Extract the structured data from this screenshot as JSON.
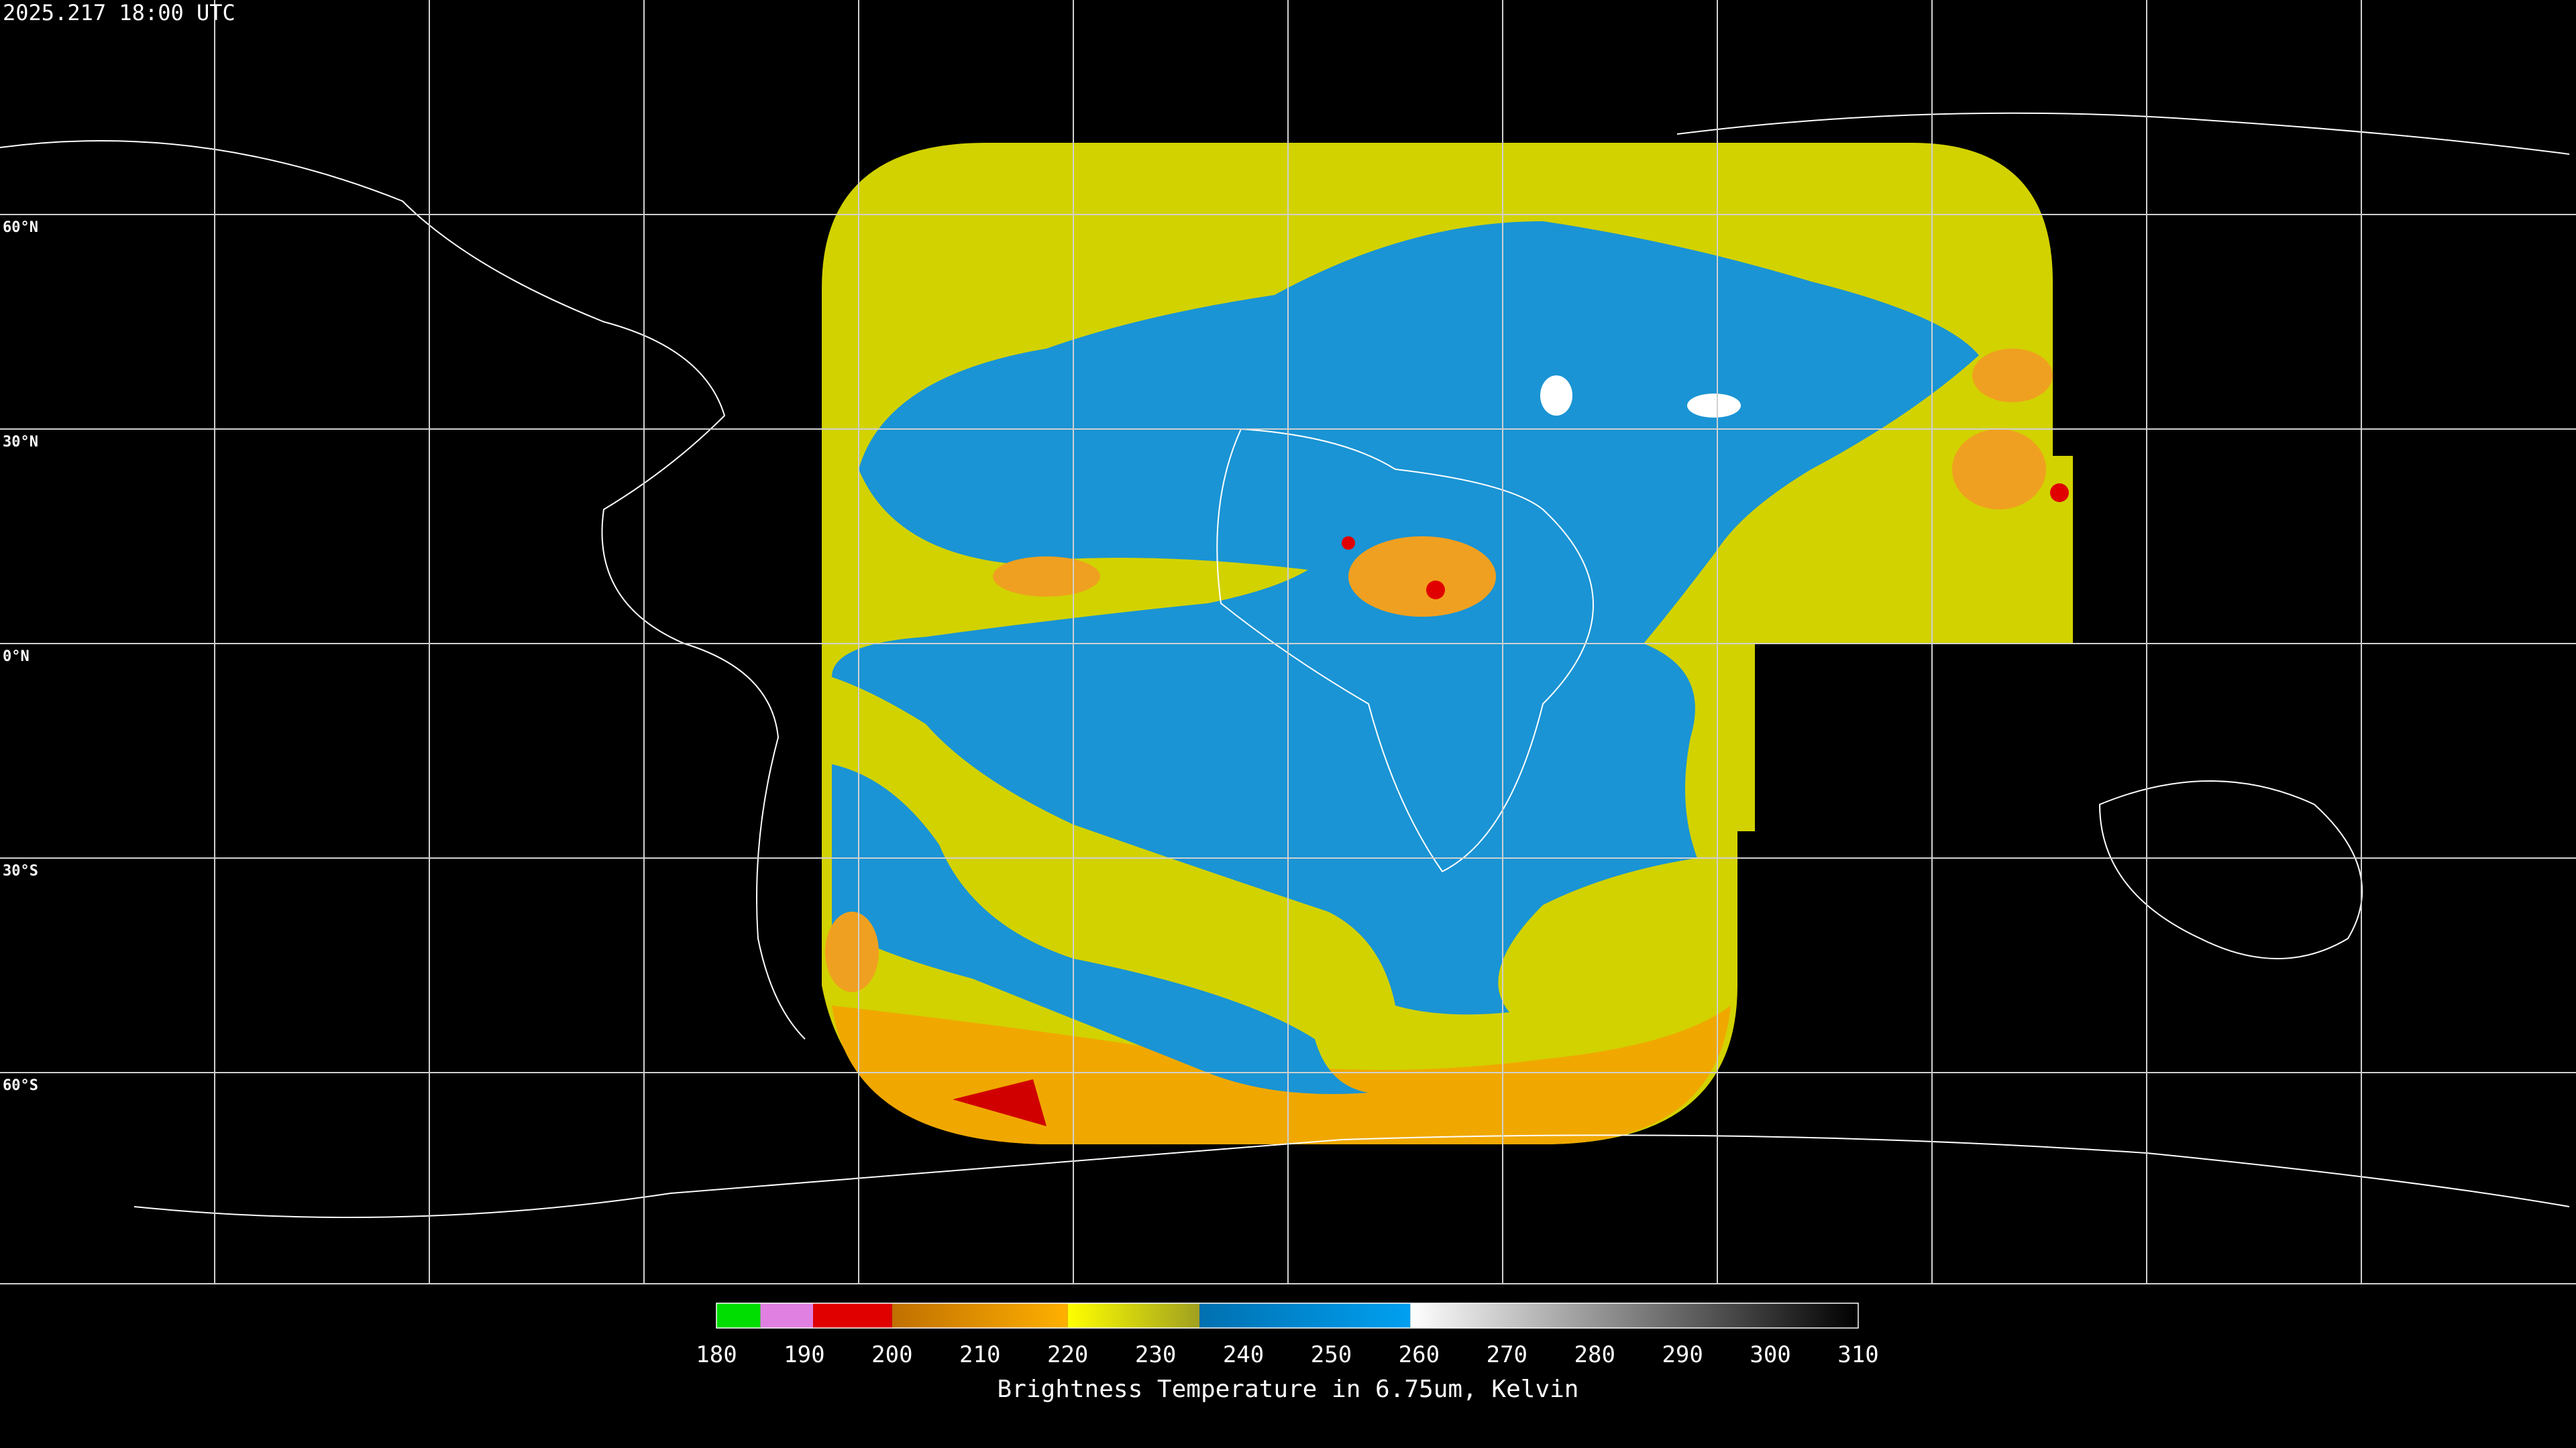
{
  "header": {
    "timestamp": "2025.217 18:00 UTC"
  },
  "latitude_labels": [
    "60°N",
    "30°N",
    "0°N",
    "30°S",
    "60°S"
  ],
  "colorbar": {
    "range": [
      180,
      310
    ],
    "ticks": [
      180,
      190,
      200,
      210,
      220,
      230,
      240,
      250,
      260,
      270,
      280,
      290,
      300,
      310
    ],
    "label": "Brightness Temperature in 6.75um, Kelvin",
    "segments": [
      {
        "from": 180,
        "to": 185,
        "color": "#00dd00",
        "color_end": "#00dd00"
      },
      {
        "from": 185,
        "to": 191,
        "color": "#e080e0",
        "color_end": "#e080e0"
      },
      {
        "from": 191,
        "to": 200,
        "color": "#e00000",
        "color_end": "#e00000"
      },
      {
        "from": 200,
        "to": 220,
        "color": "#c07000",
        "color_end": "#ffb000"
      },
      {
        "from": 220,
        "to": 235,
        "color": "#ffff00",
        "color_end": "#a0a020"
      },
      {
        "from": 235,
        "to": 259,
        "color": "#0070b0",
        "color_end": "#00a0f0"
      },
      {
        "from": 259,
        "to": 310,
        "color": "#ffffff",
        "color_end": "#000000"
      }
    ]
  }
}
